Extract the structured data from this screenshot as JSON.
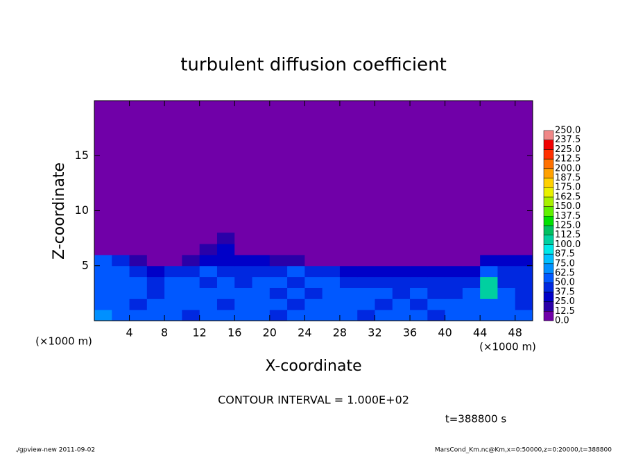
{
  "chart_data": {
    "type": "contour",
    "title": "turbulent diffusion coefficient",
    "x_label": "X-coordinate",
    "y_label": "Z-coordinate",
    "x_unit": "(×1000 m)",
    "y_unit": "(×1000 m)",
    "contour_note": "CONTOUR INTERVAL = 1.000E+02",
    "time_label": "t=388800 s",
    "footer_left": "./gpview-new  2011-09-02",
    "footer_right": "MarsCond_Km.nc@Km,x=0:50000,z=0:20000,t=388800",
    "xlim": [
      0,
      50
    ],
    "ylim": [
      0,
      20
    ],
    "xticks": [
      4,
      8,
      12,
      16,
      20,
      24,
      28,
      32,
      36,
      40,
      44,
      48
    ],
    "yticks": [
      5,
      10,
      15
    ],
    "x": [
      1,
      3,
      5,
      7,
      9,
      11,
      13,
      15,
      17,
      19,
      21,
      23,
      25,
      27,
      29,
      31,
      33,
      35,
      37,
      39,
      41,
      43,
      45,
      47,
      49
    ],
    "y": [
      0.5,
      1.5,
      2.5,
      3.5,
      4.5,
      5.5,
      6.5,
      7.5
    ],
    "values": [
      [
        70,
        60,
        50,
        55,
        50,
        45,
        60,
        50,
        55,
        50,
        45,
        50,
        50,
        55,
        50,
        45,
        50,
        55,
        50,
        45,
        50,
        50,
        55,
        60,
        50
      ],
      [
        60,
        55,
        45,
        50,
        60,
        55,
        50,
        45,
        55,
        50,
        50,
        45,
        55,
        50,
        55,
        50,
        45,
        50,
        45,
        50,
        55,
        55,
        60,
        55,
        45
      ],
      [
        55,
        60,
        50,
        45,
        55,
        50,
        55,
        50,
        50,
        55,
        45,
        50,
        45,
        55,
        50,
        50,
        50,
        45,
        50,
        45,
        45,
        50,
        110,
        50,
        45
      ],
      [
        50,
        60,
        55,
        40,
        50,
        55,
        45,
        50,
        45,
        50,
        55,
        45,
        50,
        50,
        45,
        45,
        40,
        45,
        40,
        40,
        45,
        40,
        110,
        45,
        40
      ],
      [
        60,
        50,
        45,
        35,
        40,
        45,
        50,
        45,
        45,
        40,
        45,
        50,
        40,
        40,
        35,
        35,
        35,
        30,
        30,
        30,
        30,
        35,
        55,
        40,
        40
      ],
      [
        50,
        40,
        20,
        0,
        10,
        20,
        30,
        35,
        30,
        25,
        20,
        15,
        10,
        0,
        0,
        0,
        0,
        0,
        0,
        0,
        0,
        10,
        30,
        30,
        35
      ],
      [
        0,
        10,
        0,
        0,
        0,
        0,
        20,
        30,
        0,
        0,
        0,
        0,
        0,
        0,
        0,
        0,
        0,
        0,
        0,
        0,
        0,
        0,
        0,
        0,
        0
      ],
      [
        0,
        0,
        0,
        0,
        0,
        0,
        10,
        20,
        0,
        0,
        0,
        0,
        0,
        0,
        0,
        0,
        0,
        0,
        0,
        0,
        0,
        0,
        0,
        0,
        0
      ]
    ],
    "levels": [
      {
        "value": 0,
        "label": "0.0"
      },
      {
        "value": 12.5,
        "label": "12.5"
      },
      {
        "value": 25,
        "label": "25.0"
      },
      {
        "value": 37.5,
        "label": "37.5"
      },
      {
        "value": 50,
        "label": "50.0"
      },
      {
        "value": 62.5,
        "label": "62.5"
      },
      {
        "value": 75,
        "label": "75.0"
      },
      {
        "value": 87.5,
        "label": "87.5"
      },
      {
        "value": 100,
        "label": "100.0"
      },
      {
        "value": 112.5,
        "label": "112.5"
      },
      {
        "value": 125,
        "label": "125.0"
      },
      {
        "value": 137.5,
        "label": "137.5"
      },
      {
        "value": 150,
        "label": "150.0"
      },
      {
        "value": 162.5,
        "label": "162.5"
      },
      {
        "value": 175,
        "label": "175.0"
      },
      {
        "value": 187.5,
        "label": "187.5"
      },
      {
        "value": 200,
        "label": "200.0"
      },
      {
        "value": 212.5,
        "label": "212.5"
      },
      {
        "value": 225,
        "label": "225.0"
      },
      {
        "value": 237.5,
        "label": "237.5"
      },
      {
        "value": 250,
        "label": "250.0"
      }
    ],
    "colors": [
      "#7000a8",
      "#2a00a8",
      "#0000c8",
      "#0028e0",
      "#0058ff",
      "#0090ff",
      "#00c0ff",
      "#00e8e8",
      "#00d0a0",
      "#00c060",
      "#00e000",
      "#60f000",
      "#a8f000",
      "#e8f000",
      "#ffd000",
      "#ffa000",
      "#ff7000",
      "#ff3000",
      "#f00000",
      "#f08888"
    ]
  }
}
